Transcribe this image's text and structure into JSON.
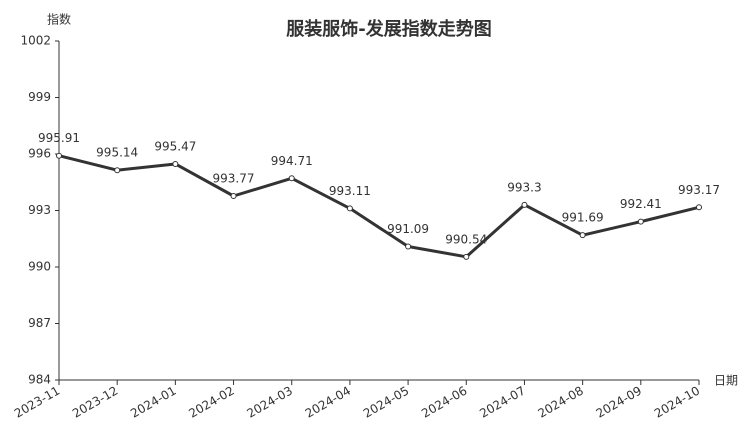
{
  "chart_data": {
    "type": "line",
    "title": "服装服饰-发展指数走势图",
    "y_label": "指数",
    "x_label": "日期",
    "categories": [
      "2023-11",
      "2023-12",
      "2024-01",
      "2024-02",
      "2024-03",
      "2024-04",
      "2024-05",
      "2024-06",
      "2024-07",
      "2024-08",
      "2024-09",
      "2024-10"
    ],
    "series": [
      {
        "name": "指数",
        "color": "#333333",
        "values": [
          995.91,
          995.14,
          995.47,
          993.77,
          994.71,
          993.11,
          991.09,
          990.54,
          993.3,
          991.69,
          992.41,
          993.17
        ]
      }
    ],
    "ylim": [
      984,
      1002
    ],
    "yticks": [
      984,
      987,
      990,
      993,
      996,
      999,
      1002
    ],
    "grid": false
  }
}
